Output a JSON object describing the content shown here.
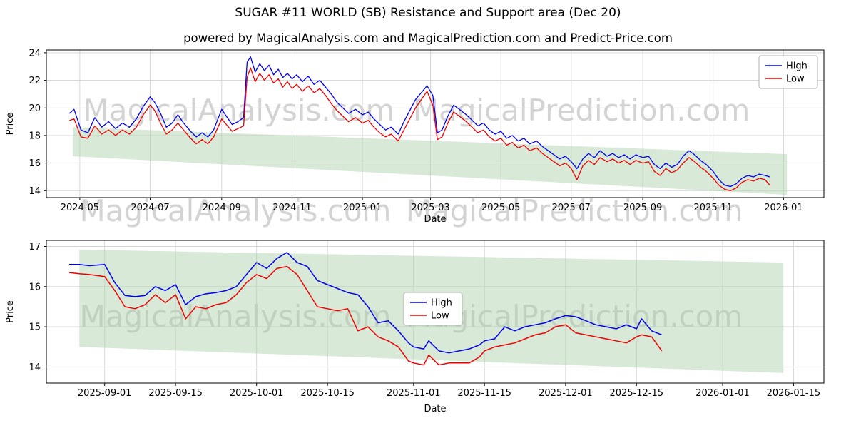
{
  "header": {
    "title": "SUGAR #11 WORLD (SB) Resistance and Support area (Dec 20)",
    "subtitle": "powered by MagicalAnalysis.com and MagicalPrediction.com and Predict-Price.com"
  },
  "watermark": {
    "left": "MagicalAnalysis.com",
    "right": "MagicalPrediction.com"
  },
  "colors": {
    "high_line": "#0000ee",
    "low_line": "#ee0000",
    "band_fill": "#a8cfa8",
    "grid": "#d3d3d3",
    "frame": "#000000",
    "legend_border": "#b0b0b0"
  },
  "chart_data": [
    {
      "type": "line",
      "xlabel": "Date",
      "ylabel": "Price",
      "legend": [
        "High",
        "Low"
      ],
      "legend_loc": "upper right",
      "grid": true,
      "ylim": [
        13.5,
        24.2
      ],
      "xlim": [
        -18,
        656
      ],
      "yticks": [
        14,
        16,
        18,
        20,
        22,
        24
      ],
      "xtick_pos": [
        11,
        72,
        134,
        195,
        256,
        315,
        376,
        437,
        499,
        560,
        621
      ],
      "xtick_labels": [
        "2024-05",
        "2024-07",
        "2024-09",
        "2024-11",
        "2025-01",
        "2025-03",
        "2025-05",
        "2025-07",
        "2025-09",
        "2025-11",
        "2026-01"
      ],
      "x": [
        2,
        6,
        12,
        18,
        24,
        30,
        36,
        42,
        48,
        54,
        60,
        66,
        72,
        76,
        81,
        86,
        91,
        96,
        101,
        107,
        112,
        117,
        122,
        127,
        134,
        138,
        143,
        148,
        153,
        156,
        159,
        163,
        167,
        171,
        175,
        179,
        183,
        187,
        191,
        195,
        199,
        204,
        209,
        214,
        219,
        224,
        229,
        234,
        239,
        244,
        250,
        256,
        261,
        266,
        271,
        276,
        281,
        287,
        292,
        297,
        302,
        307,
        312,
        317,
        321,
        325,
        330,
        335,
        340,
        346,
        351,
        356,
        361,
        366,
        371,
        376,
        381,
        386,
        391,
        396,
        401,
        407,
        412,
        417,
        422,
        427,
        432,
        437,
        442,
        447,
        452,
        457,
        462,
        468,
        473,
        478,
        483,
        488,
        493,
        499,
        504,
        509,
        514,
        519,
        524,
        529,
        534,
        539,
        544,
        549,
        554,
        560,
        565,
        570,
        575,
        580,
        585,
        590,
        595,
        600,
        605,
        609
      ],
      "series": [
        {
          "name": "High",
          "color": "#0000ee",
          "values": [
            19.6,
            19.9,
            18.4,
            18.2,
            19.3,
            18.6,
            19.0,
            18.5,
            18.9,
            18.6,
            19.2,
            20.1,
            20.8,
            20.4,
            19.6,
            18.6,
            18.9,
            19.5,
            18.9,
            18.3,
            17.9,
            18.2,
            17.9,
            18.4,
            19.9,
            19.4,
            18.8,
            19.0,
            19.3,
            23.3,
            23.7,
            22.6,
            23.2,
            22.7,
            23.1,
            22.4,
            22.8,
            22.2,
            22.5,
            22.1,
            22.4,
            21.9,
            22.3,
            21.7,
            22.0,
            21.5,
            21.0,
            20.4,
            20.0,
            19.6,
            19.9,
            19.5,
            19.7,
            19.2,
            18.8,
            18.4,
            18.6,
            18.1,
            19.0,
            19.8,
            20.6,
            21.1,
            21.6,
            20.9,
            18.2,
            18.4,
            19.4,
            20.2,
            19.9,
            19.5,
            19.1,
            18.7,
            18.9,
            18.4,
            18.1,
            18.3,
            17.8,
            18.0,
            17.6,
            17.8,
            17.4,
            17.6,
            17.2,
            16.9,
            16.6,
            16.3,
            16.5,
            16.1,
            15.6,
            16.3,
            16.7,
            16.4,
            16.9,
            16.5,
            16.7,
            16.4,
            16.6,
            16.3,
            16.6,
            16.4,
            16.5,
            15.9,
            15.6,
            16.0,
            15.7,
            15.9,
            16.5,
            16.9,
            16.6,
            16.2,
            15.9,
            15.4,
            14.8,
            14.4,
            14.3,
            14.5,
            14.9,
            15.1,
            15.0,
            15.2,
            15.1,
            15.0
          ]
        },
        {
          "name": "Low",
          "color": "#ee0000",
          "values": [
            19.1,
            19.2,
            17.9,
            17.8,
            18.7,
            18.1,
            18.4,
            18.0,
            18.4,
            18.1,
            18.6,
            19.5,
            20.2,
            19.8,
            18.9,
            18.1,
            18.4,
            18.9,
            18.4,
            17.8,
            17.4,
            17.7,
            17.4,
            17.9,
            19.2,
            18.8,
            18.3,
            18.5,
            18.7,
            22.2,
            22.9,
            21.9,
            22.5,
            22.0,
            22.4,
            21.8,
            22.1,
            21.5,
            21.9,
            21.4,
            21.7,
            21.2,
            21.6,
            21.1,
            21.4,
            20.9,
            20.3,
            19.8,
            19.4,
            19.0,
            19.3,
            18.9,
            19.1,
            18.6,
            18.2,
            17.9,
            18.1,
            17.6,
            18.4,
            19.2,
            20.0,
            20.6,
            21.2,
            20.2,
            17.7,
            17.9,
            18.9,
            19.7,
            19.4,
            19.0,
            18.6,
            18.2,
            18.4,
            17.9,
            17.6,
            17.8,
            17.3,
            17.5,
            17.1,
            17.3,
            16.9,
            17.1,
            16.7,
            16.4,
            16.1,
            15.8,
            16.0,
            15.6,
            14.8,
            15.8,
            16.2,
            15.9,
            16.4,
            16.1,
            16.3,
            16.0,
            16.2,
            15.9,
            16.2,
            16.0,
            16.1,
            15.4,
            15.1,
            15.6,
            15.3,
            15.5,
            16.0,
            16.4,
            16.1,
            15.7,
            15.4,
            14.9,
            14.4,
            14.1,
            14.0,
            14.2,
            14.6,
            14.8,
            14.7,
            14.9,
            14.8,
            14.4
          ]
        }
      ],
      "band": {
        "x_start": 5,
        "x_end": 624,
        "top_start": 18.6,
        "top_end": 16.65,
        "bottom_start": 16.5,
        "bottom_end": 13.7
      }
    },
    {
      "type": "line",
      "xlabel": "Date",
      "ylabel": "Price",
      "legend": [
        "High",
        "Low"
      ],
      "legend_loc": "center",
      "grid": true,
      "ylim": [
        13.6,
        17.15
      ],
      "xlim": [
        -4.5,
        149
      ],
      "yticks": [
        14,
        15,
        16,
        17
      ],
      "xtick_pos": [
        7,
        21,
        37,
        51,
        68,
        82,
        98,
        112,
        129,
        143
      ],
      "xtick_labels": [
        "2025-09-01",
        "2025-09-15",
        "2025-10-01",
        "2025-10-15",
        "2025-11-01",
        "2025-11-15",
        "2025-12-01",
        "2025-12-15",
        "2026-01-01",
        "2026-01-15"
      ],
      "x": [
        0,
        2,
        4,
        7,
        9,
        11,
        13,
        15,
        17,
        19,
        21,
        23,
        25,
        27,
        29,
        31,
        33,
        35,
        37,
        39,
        41,
        43,
        45,
        47,
        49,
        51,
        53,
        55,
        57,
        59,
        61,
        63,
        65,
        67,
        68,
        70,
        71,
        73,
        75,
        77,
        79,
        81,
        82,
        84,
        86,
        88,
        90,
        92,
        94,
        96,
        98,
        100,
        102,
        104,
        106,
        108,
        110,
        112,
        113,
        115,
        117
      ],
      "series": [
        {
          "name": "High",
          "color": "#0000ee",
          "values": [
            16.55,
            16.55,
            16.52,
            16.55,
            16.1,
            15.78,
            15.75,
            15.78,
            16.0,
            15.9,
            16.05,
            15.55,
            15.75,
            15.82,
            15.85,
            15.9,
            16.0,
            16.3,
            16.6,
            16.45,
            16.7,
            16.85,
            16.6,
            16.5,
            16.15,
            16.05,
            15.95,
            15.85,
            15.8,
            15.5,
            15.1,
            15.15,
            14.9,
            14.6,
            14.5,
            14.45,
            14.65,
            14.4,
            14.35,
            14.4,
            14.45,
            14.55,
            14.65,
            14.7,
            15.0,
            14.9,
            15.0,
            15.05,
            15.1,
            15.2,
            15.28,
            15.25,
            15.15,
            15.05,
            15.0,
            14.95,
            15.05,
            14.95,
            15.2,
            14.9,
            14.8
          ]
        },
        {
          "name": "Low",
          "color": "#ee0000",
          "values": [
            16.35,
            16.32,
            16.3,
            16.25,
            15.9,
            15.5,
            15.45,
            15.55,
            15.8,
            15.6,
            15.8,
            15.2,
            15.5,
            15.45,
            15.55,
            15.6,
            15.8,
            16.1,
            16.3,
            16.2,
            16.45,
            16.5,
            16.3,
            15.9,
            15.5,
            15.45,
            15.4,
            15.45,
            14.9,
            15.0,
            14.75,
            14.65,
            14.5,
            14.15,
            14.1,
            14.05,
            14.3,
            14.05,
            14.1,
            14.1,
            14.1,
            14.25,
            14.4,
            14.5,
            14.55,
            14.6,
            14.7,
            14.8,
            14.85,
            15.0,
            15.05,
            14.85,
            14.8,
            14.75,
            14.7,
            14.65,
            14.6,
            14.75,
            14.8,
            14.75,
            14.4
          ]
        }
      ],
      "band": {
        "x_start": 2,
        "x_end": 141,
        "top_start": 16.92,
        "top_end": 16.6,
        "bottom_start": 14.5,
        "bottom_end": 13.85
      }
    }
  ]
}
